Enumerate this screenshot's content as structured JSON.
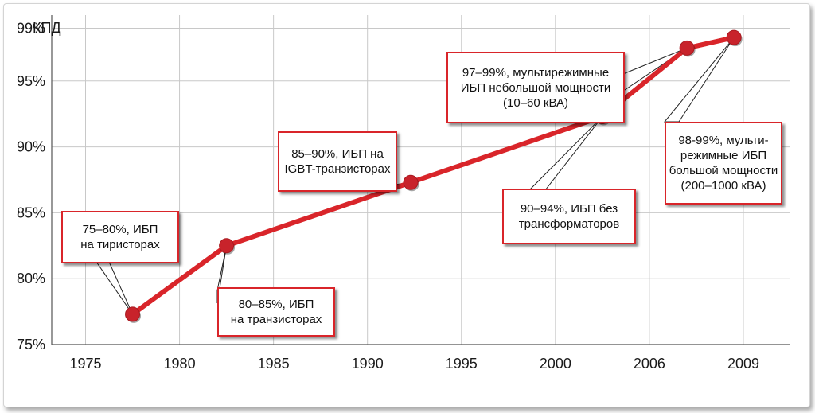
{
  "chart_data": {
    "type": "line",
    "ylabel": "КПД",
    "x_ticks": [
      "1975",
      "1980",
      "1985",
      "1990",
      "1995",
      "2000",
      "2006",
      "2009"
    ],
    "y_ticks": [
      "75%",
      "80%",
      "85%",
      "90%",
      "95%",
      "99%"
    ],
    "ylim": [
      75,
      100
    ],
    "grid": true,
    "series": [
      {
        "points": [
          {
            "x": 1977.5,
            "y": 77.3
          },
          {
            "x": 1982.5,
            "y": 82.5
          },
          {
            "x": 1992.3,
            "y": 87.3
          },
          {
            "x": 2002.5,
            "y": 92.3
          },
          {
            "x": 2007.0,
            "y": 97.5
          },
          {
            "x": 2009.5,
            "y": 98.3
          }
        ]
      }
    ],
    "annotations": [
      {
        "text": "75–80%, ИБП\nна тиристорах",
        "target": 0
      },
      {
        "text": "80–85%, ИБП\nна транзисторах",
        "target": 1
      },
      {
        "text": "85–90%, ИБП на\nIGBT-транзисторах",
        "target": 2
      },
      {
        "text": "90–94%, ИБП без\nтрансформаторов",
        "target": 3
      },
      {
        "text": "97–99%, мультирежимные\nИБП небольшой мощности\n(10–60 кВА)",
        "target": 4
      },
      {
        "text": "98-99%, мульти-\nрежимные ИБП\nбольшой мощности\n(200–1000 кВА)",
        "target": 5
      }
    ],
    "colors": {
      "line": "#d9252a",
      "marker": "#c8232b",
      "grid": "#c8c8c8",
      "box_border": "#d9252a"
    }
  }
}
